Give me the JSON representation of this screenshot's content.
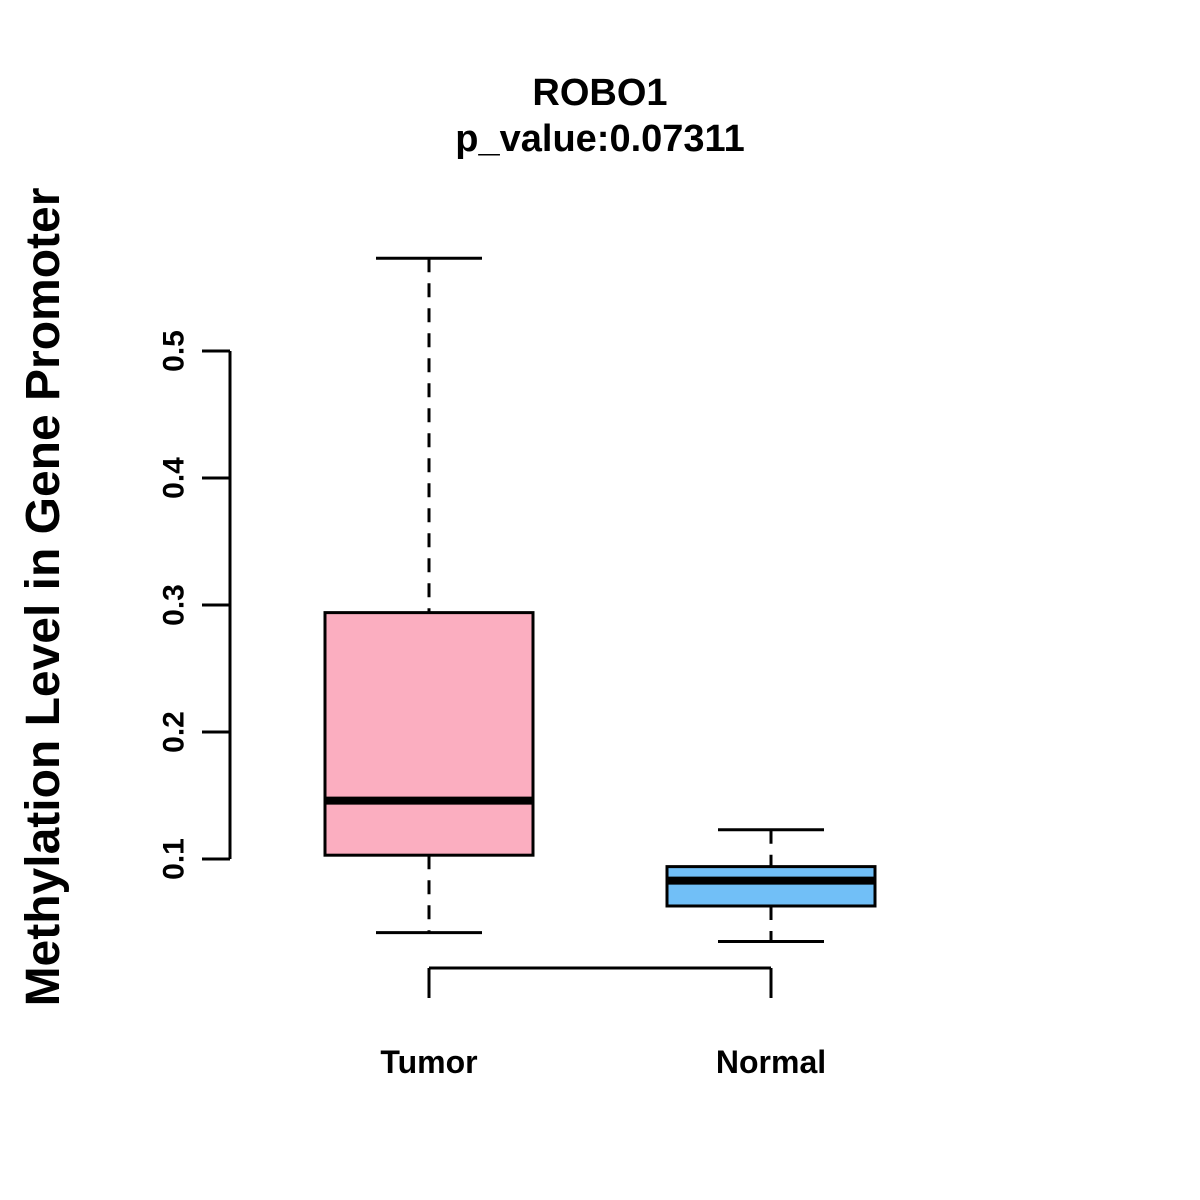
{
  "figure": {
    "title": "ROBO1",
    "subtitle": "p_value:0.07311"
  },
  "chart_data": {
    "type": "boxplot",
    "title": "ROBO1",
    "subtitle": "p_value:0.07311",
    "p_value": "0.07311",
    "ylabel": "Methylation Level in Gene Promoter",
    "xlabel": "",
    "ytick_labels": [
      "0.1",
      "0.2",
      "0.3",
      "0.4",
      "0.5"
    ],
    "ytick_values": [
      0.1,
      0.2,
      0.3,
      0.4,
      0.5
    ],
    "ylim": [
      0.03,
      0.58
    ],
    "grid": false,
    "legend": "none",
    "line_color": "#000000",
    "groups": [
      {
        "label": "Tumor",
        "fill_color": "#FBAEC0",
        "stats": {
          "whisker_low": 0.042,
          "q1": 0.103,
          "median": 0.146,
          "q3": 0.294,
          "whisker_high": 0.573
        }
      },
      {
        "label": "Normal",
        "fill_color": "#71BFF7",
        "stats": {
          "whisker_low": 0.035,
          "q1": 0.063,
          "median": 0.083,
          "q3": 0.094,
          "whisker_high": 0.123
        }
      }
    ]
  }
}
